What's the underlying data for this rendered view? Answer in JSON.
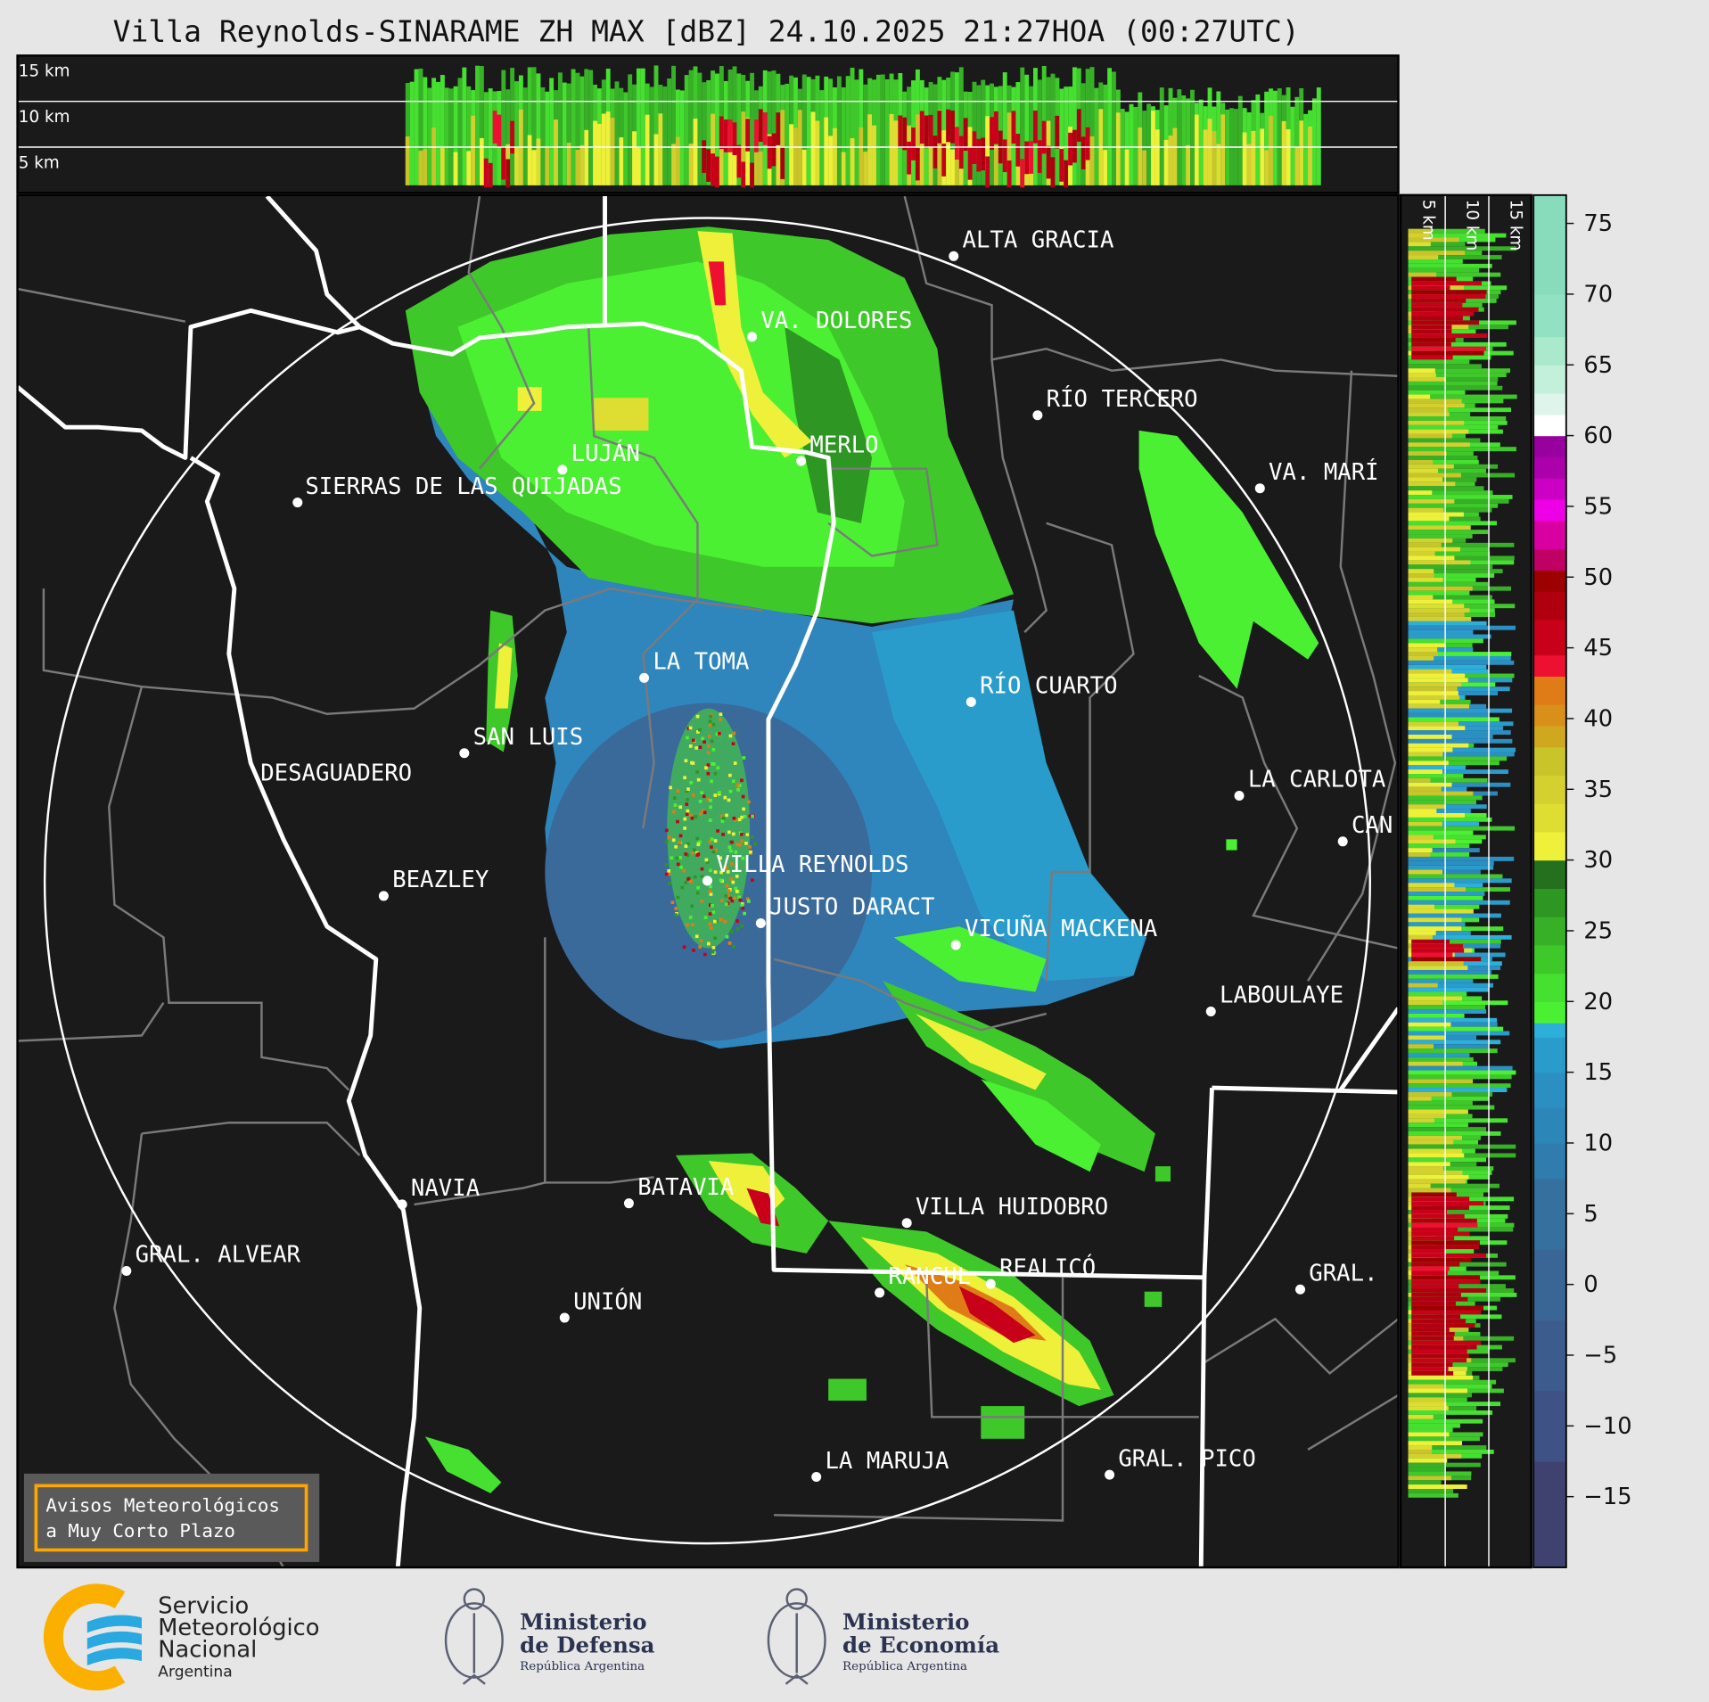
{
  "title": "Villa Reynolds-SINARAME ZH MAX [dBZ] 24.10.2025 21:27HOA (00:27UTC)",
  "top_section": {
    "labels": [
      "15 km",
      "10 km",
      "5 km"
    ]
  },
  "side_section": {
    "labels": [
      "5 km",
      "10 km",
      "15 km"
    ]
  },
  "cities": [
    "ALTA GRACIA",
    "VA. DOLORES",
    "RÍO TERCERO",
    "MERLO",
    "LUJÁN",
    "SIERRAS DE LAS QUIJADAS",
    "VA. MARÍ",
    "LA TOMA",
    "RÍO CUARTO",
    "SAN LUIS",
    "DESAGUADERO",
    "LA CARLOTA",
    "CAN",
    "VILLA REYNOLDS",
    "BEAZLEY",
    "JUSTO DARACT",
    "VICUÑA MACKENA",
    "LABOULAYE",
    "NAVIA",
    "BATAVIA",
    "VILLA HUIDOBRO",
    "GRAL. ALVEAR",
    "REALICÓ",
    "RANCUL",
    "GRAL.",
    "UNIÓN",
    "LA MARUJA",
    "GRAL. PICO"
  ],
  "warning_box": {
    "line1": "Avisos Meteorológicos",
    "line2": "a Muy Corto Plazo",
    "border_color": "#ffa500"
  },
  "colorbar": {
    "unit": "dBZ",
    "range": [
      -20,
      77
    ],
    "ticks": [
      "75",
      "70",
      "65",
      "60",
      "55",
      "50",
      "45",
      "40",
      "35",
      "30",
      "25",
      "20",
      "15",
      "10",
      "5",
      "0",
      "−5",
      "−10",
      "−15"
    ],
    "bands": [
      [
        -20,
        -12.5,
        "#3f426e"
      ],
      [
        -12.5,
        -7.5,
        "#3e5286"
      ],
      [
        -7.5,
        -2.5,
        "#3c5c8e"
      ],
      [
        -2.5,
        2.5,
        "#3a6696"
      ],
      [
        2.5,
        7.5,
        "#36709f"
      ],
      [
        7.5,
        10,
        "#307cae"
      ],
      [
        10,
        12.5,
        "#2d86b8"
      ],
      [
        12.5,
        15,
        "#2b8fc2"
      ],
      [
        15,
        17.5,
        "#2a9ccc"
      ],
      [
        17.5,
        18.5,
        "#2cb0da"
      ],
      [
        18.5,
        20,
        "#4cf032"
      ],
      [
        20,
        22,
        "#46e030"
      ],
      [
        22,
        24,
        "#3fc82a"
      ],
      [
        24,
        26,
        "#37b027"
      ],
      [
        26,
        28,
        "#2e9622"
      ],
      [
        28,
        30,
        "#24701e"
      ],
      [
        30,
        32,
        "#eef03a"
      ],
      [
        32,
        34,
        "#dede32"
      ],
      [
        34,
        36,
        "#d4d030"
      ],
      [
        36,
        38,
        "#c8c42a"
      ],
      [
        38,
        39.5,
        "#d0a820"
      ],
      [
        39.5,
        41,
        "#d8901a"
      ],
      [
        41,
        43,
        "#e07c18"
      ],
      [
        43,
        44.5,
        "#ee1030"
      ],
      [
        44.5,
        47,
        "#c8001a"
      ],
      [
        47,
        49,
        "#b00010"
      ],
      [
        49,
        50.5,
        "#9c0000"
      ],
      [
        50.5,
        52,
        "#c00064"
      ],
      [
        52,
        54,
        "#d800a0"
      ],
      [
        54,
        55.5,
        "#ee00e6"
      ],
      [
        55.5,
        57,
        "#cc00c4"
      ],
      [
        57,
        58.5,
        "#ac00ac"
      ],
      [
        58.5,
        60,
        "#9900a0"
      ],
      [
        60,
        61.5,
        "#ffffff"
      ],
      [
        61.5,
        63,
        "#ddf5ea"
      ],
      [
        63,
        65,
        "#c3f0da"
      ],
      [
        65,
        67,
        "#aae9cc"
      ],
      [
        67,
        70,
        "#92e1c2"
      ],
      [
        70,
        77,
        "#88dcbc"
      ]
    ]
  },
  "logos": {
    "smn": {
      "line1": "Servicio",
      "line2": "Meteorológico",
      "line3": "Nacional",
      "line4": "Argentina",
      "orange": "#fbb000",
      "blue": "#2aa8e0"
    },
    "defensa": {
      "line1": "Ministerio",
      "line2": "de Defensa",
      "line3": "República Argentina"
    },
    "economia": {
      "line1": "Ministerio",
      "line2": "de Economía",
      "line3": "República Argentina"
    }
  }
}
